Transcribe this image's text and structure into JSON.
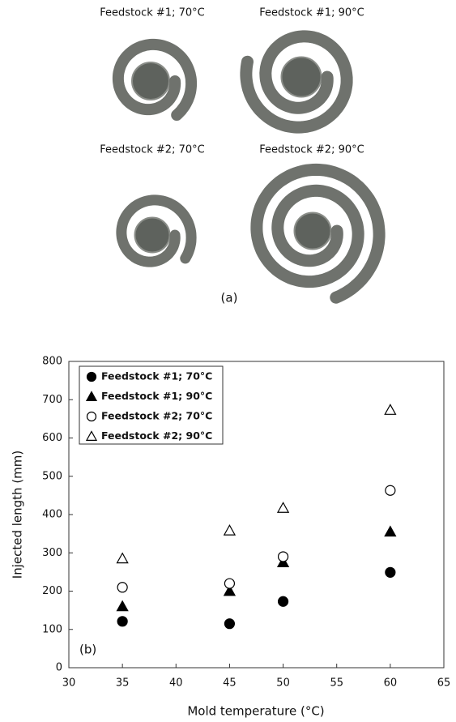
{
  "photos": {
    "labels": [
      "Feedstock #1; 70°C",
      "Feedstock #1; 90°C",
      "Feedstock #2; 70°C",
      "Feedstock #2; 90°C"
    ],
    "caption": "(a)"
  },
  "chart_data": {
    "type": "scatter",
    "annotation": "(b)",
    "x_label": "Mold temperature (°C)",
    "y_label": "Injected length (mm)",
    "xlim": [
      30,
      65
    ],
    "xticks": [
      30,
      35,
      40,
      45,
      50,
      55,
      60,
      65
    ],
    "ylim": [
      0,
      800
    ],
    "yticks": [
      0,
      100,
      200,
      300,
      400,
      500,
      600,
      700,
      800
    ],
    "legend": "upper left",
    "series": [
      {
        "name": "Feedstock #1; 70°C",
        "color": "#000000",
        "marker": "circle",
        "filled": true,
        "x": [
          35,
          45,
          50,
          60
        ],
        "values": [
          121,
          115,
          173,
          249
        ]
      },
      {
        "name": "Feedstock #1; 90°C",
        "color": "#000000",
        "marker": "triangle",
        "filled": true,
        "x": [
          35,
          45,
          50,
          60
        ],
        "values": [
          160,
          200,
          275,
          355
        ]
      },
      {
        "name": "Feedstock #2; 70°C",
        "color": "#000000",
        "marker": "circle",
        "filled": false,
        "x": [
          35,
          45,
          50,
          60
        ],
        "values": [
          210,
          220,
          290,
          463
        ]
      },
      {
        "name": "Feedstock #2; 90°C",
        "color": "#000000",
        "marker": "triangle",
        "filled": false,
        "x": [
          35,
          45,
          50,
          60
        ],
        "values": [
          285,
          358,
          417,
          673
        ]
      }
    ]
  }
}
